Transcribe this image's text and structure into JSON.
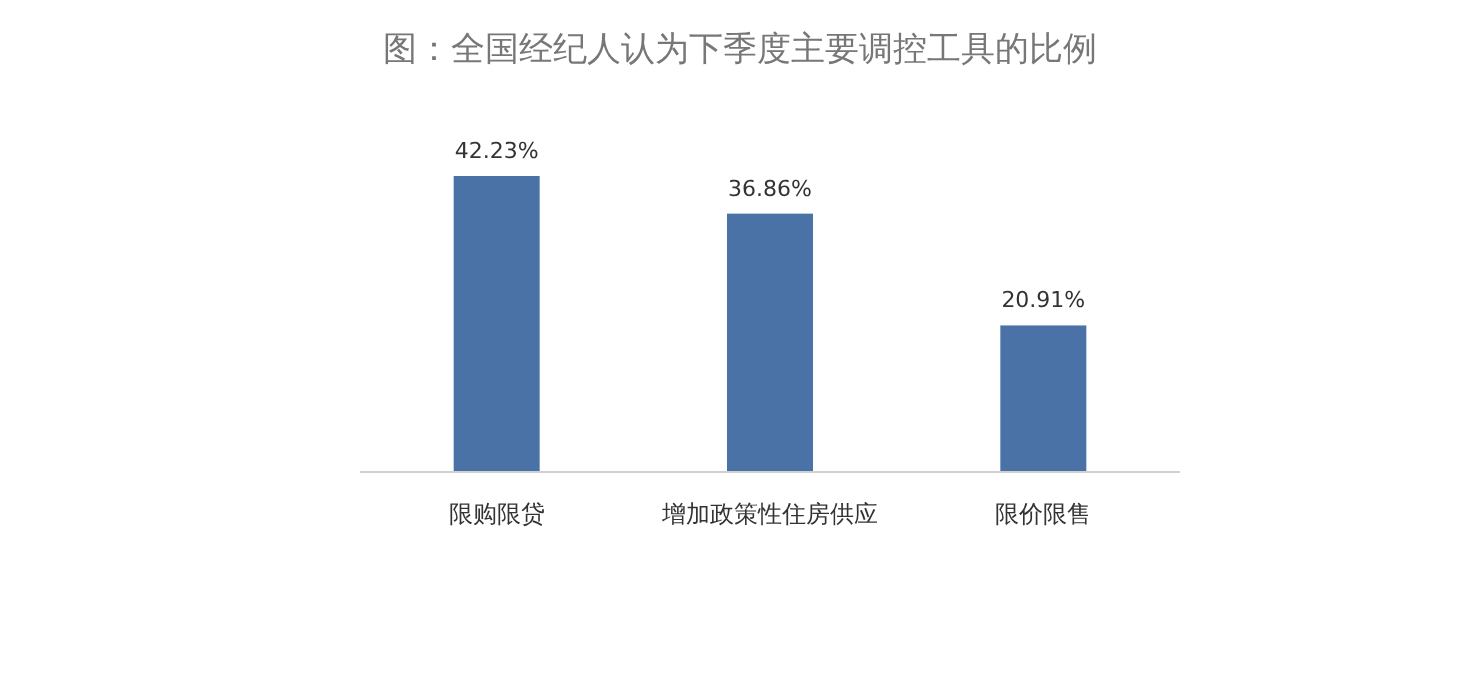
{
  "chart_data": {
    "type": "bar",
    "title": "图：全国经纪人认为下季度主要调控工具的比例",
    "categories": [
      "限购限贷",
      "增加政策性住房供应",
      "限价限售"
    ],
    "values": [
      42.23,
      36.86,
      20.91
    ],
    "value_labels": [
      "42.23%",
      "36.86%",
      "20.91%"
    ],
    "color": "#4a72a6"
  }
}
